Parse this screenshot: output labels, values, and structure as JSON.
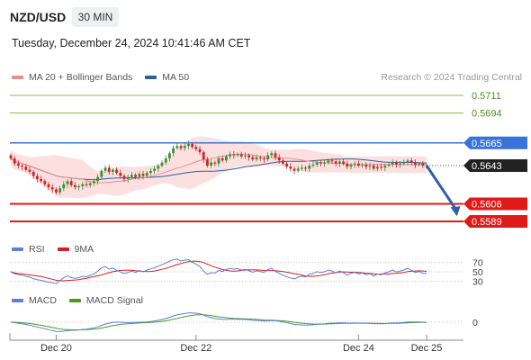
{
  "header": {
    "symbol": "NZD/USD",
    "timeframe": "30 MIN",
    "datetime": "Tuesday, December 24, 2024 10:41:46 AM CET",
    "credit": "Research © 2024 Trading Central"
  },
  "colors": {
    "ma20": "#f08a8a",
    "bands_fill": "#fbd6d6",
    "ma50": "#2b5d9b",
    "candle_up": "#3b8f3b",
    "candle_down": "#c62828",
    "resistance": "#8bc24a",
    "pivot": "#3a72d8",
    "support": "#e01919",
    "current": "#222222",
    "arrow": "#2c5fa8",
    "rsi": "#5b7fd6",
    "rsi_ma": "#d21f1f",
    "macd": "#5b7fd6",
    "macd_signal": "#4a9a2a",
    "axis": "#888888"
  },
  "chart_data": [
    {
      "type": "candlestick",
      "name": "price",
      "legend": [
        {
          "label": "MA 20 + Bollinger Bands",
          "color": "#f08a8a"
        },
        {
          "label": "MA 50",
          "color": "#2b5d9b"
        }
      ],
      "ylim": [
        0.5575,
        0.5725
      ],
      "x_ticks": [
        {
          "label": "Dec 20",
          "index": 12
        },
        {
          "label": "Dec 22",
          "index": 49
        },
        {
          "label": "Dec 24",
          "index": 92
        },
        {
          "label": "Dec 25",
          "index": 110
        }
      ],
      "levels": [
        {
          "label": "0.5711",
          "value": 0.5711,
          "kind": "resistance"
        },
        {
          "label": "0.5694",
          "value": 0.5694,
          "kind": "resistance"
        },
        {
          "label": "0.5665",
          "value": 0.5665,
          "kind": "pivot"
        },
        {
          "label": "0.5643",
          "value": 0.5643,
          "kind": "current"
        },
        {
          "label": "0.5606",
          "value": 0.5606,
          "kind": "support"
        },
        {
          "label": "0.5589",
          "value": 0.5589,
          "kind": "support"
        }
      ],
      "forecast_arrow": {
        "from_index": 110,
        "from_value": 0.5643,
        "to_index": 118,
        "to_value": 0.5594
      },
      "closes": [
        0.565,
        0.5645,
        0.5643,
        0.5642,
        0.5639,
        0.5637,
        0.5633,
        0.563,
        0.5628,
        0.5625,
        0.5622,
        0.562,
        0.5617,
        0.5621,
        0.5625,
        0.5628,
        0.5624,
        0.5622,
        0.5623,
        0.5625,
        0.5624,
        0.5626,
        0.5628,
        0.5632,
        0.5638,
        0.5641,
        0.5637,
        0.5639,
        0.5636,
        0.5633,
        0.563,
        0.5632,
        0.5634,
        0.5632,
        0.5635,
        0.5633,
        0.5636,
        0.5638,
        0.564,
        0.5643,
        0.5646,
        0.565,
        0.5655,
        0.566,
        0.5662,
        0.566,
        0.5662,
        0.5664,
        0.5661,
        0.5659,
        0.5656,
        0.5649,
        0.5643,
        0.5646,
        0.5645,
        0.565,
        0.5648,
        0.5652,
        0.5654,
        0.5653,
        0.5654,
        0.5652,
        0.5653,
        0.5651,
        0.5649,
        0.5651,
        0.565,
        0.5649,
        0.5653,
        0.5655,
        0.5651,
        0.5648,
        0.5645,
        0.5642,
        0.564,
        0.5638,
        0.564,
        0.5641,
        0.564,
        0.5643,
        0.5644,
        0.5646,
        0.5645,
        0.5646,
        0.5648,
        0.5647,
        0.5645,
        0.5647,
        0.5645,
        0.5642,
        0.5644,
        0.5645,
        0.5643,
        0.5644,
        0.5642,
        0.5643,
        0.564,
        0.5642,
        0.5641,
        0.5643,
        0.5644,
        0.5646,
        0.5644,
        0.5645,
        0.5646,
        0.5648,
        0.5646,
        0.5644,
        0.5645,
        0.5643,
        0.5643
      ]
    },
    {
      "type": "line",
      "name": "rsi",
      "legend": [
        {
          "label": "RSI",
          "color": "#5b7fd6"
        },
        {
          "label": "9MA",
          "color": "#d21f1f"
        }
      ],
      "ylim": [
        20,
        80
      ],
      "y_ticks": [
        "70",
        "50",
        "30"
      ],
      "y_tick_values": [
        70,
        50,
        30
      ]
    },
    {
      "type": "line",
      "name": "macd",
      "legend": [
        {
          "label": "MACD",
          "color": "#5b7fd6"
        },
        {
          "label": "MACD Signal",
          "color": "#4a9a2a"
        }
      ],
      "ylim": [
        -0.0012,
        0.0012
      ],
      "y_ticks": [
        "0"
      ],
      "y_tick_values": [
        0
      ]
    }
  ]
}
